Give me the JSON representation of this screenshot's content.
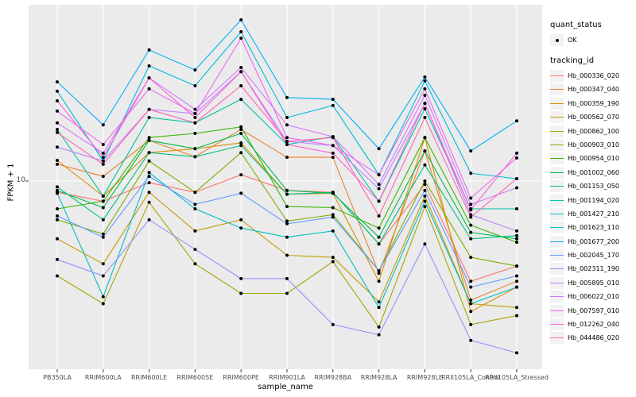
{
  "y_axis": {
    "title": "FPKM + 1",
    "tick_label": "10"
  },
  "x_axis": {
    "title": "sample_name",
    "categories": [
      "PB350LA",
      "RRIM600LA",
      "RRIM600LE",
      "RRIM600SE",
      "RRIM600PE",
      "RRIM901LA",
      "RRIM928BA",
      "RRIM928LA",
      "RRIM928LE",
      "RRII105LA_Control",
      "RRII105LA_Stressed"
    ]
  },
  "legend": {
    "quant_status": {
      "title": "quant_status",
      "items": [
        {
          "label": "OK",
          "symbol": "point"
        }
      ]
    },
    "tracking_id_title": "tracking_id"
  },
  "colors": {
    "panel_bg": "#EBEBEB",
    "gridline": "#FFFFFF",
    "tick": "#333333",
    "axis_text": "#4d4d4d",
    "point": "#000000",
    "legend_key_bg": "#F2F2F2"
  },
  "chart_data": {
    "type": "line",
    "title": "",
    "xlabel": "sample_name",
    "ylabel": "FPKM + 1",
    "y_scale": "log10",
    "ylim": [
      1,
      88
    ],
    "y_tick_values": [
      10
    ],
    "grid": "major",
    "legend_position": "right",
    "marker": "black point (quant_status OK)",
    "categories": [
      "PB350LA",
      "RRIM600LA",
      "RRIM600LE",
      "RRIM600SE",
      "RRIM600PE",
      "RRIM901LA",
      "RRIM928BA",
      "RRIM928LA",
      "RRIM928LE",
      "RRII105LA_Control",
      "RRII105LA_Stressed"
    ],
    "series": [
      {
        "name": "Hb_000336_020",
        "color": "#F8766D",
        "values": [
          8.7,
          7.8,
          9.8,
          8.7,
          10.8,
          8.9,
          8.7,
          4.6,
          9.6,
          2.9,
          3.5
        ]
      },
      {
        "name": "Hb_000347_040",
        "color": "#EA8331",
        "values": [
          12.3,
          10.6,
          16.5,
          13.5,
          18.9,
          13.4,
          13.4,
          3.2,
          14.5,
          2.3,
          2.9
        ]
      },
      {
        "name": "Hb_000359_190",
        "color": "#D89000",
        "values": [
          12.9,
          8.3,
          14.2,
          14.9,
          16.0,
          8.5,
          8.6,
          2.9,
          17.1,
          2.0,
          2.7
        ]
      },
      {
        "name": "Hb_000562_070",
        "color": "#C49A00",
        "values": [
          4.9,
          3.6,
          8.7,
          5.4,
          6.2,
          4.0,
          3.9,
          2.25,
          8.3,
          2.2,
          2.1
        ]
      },
      {
        "name": "Hb_000862_100",
        "color": "#A3A500",
        "values": [
          3.1,
          2.2,
          7.7,
          3.6,
          2.5,
          2.5,
          3.7,
          1.65,
          7.3,
          1.7,
          1.9
        ]
      },
      {
        "name": "Hb_000903_010",
        "color": "#7CAE00",
        "values": [
          6.2,
          5.2,
          12.8,
          8.7,
          14.2,
          6.1,
          6.6,
          3.3,
          10.0,
          3.9,
          3.5
        ]
      },
      {
        "name": "Hb_000954_010",
        "color": "#39B600",
        "values": [
          7.1,
          7.8,
          17.1,
          18.0,
          19.5,
          7.3,
          7.2,
          5.6,
          17.1,
          5.8,
          4.7
        ]
      },
      {
        "name": "Hb_001002_060",
        "color": "#00BB4E",
        "values": [
          8.9,
          7.2,
          16.5,
          14.9,
          18.0,
          8.9,
          8.6,
          5.0,
          14.5,
          5.3,
          4.9
        ]
      },
      {
        "name": "Hb_001153_050",
        "color": "#00BF7D",
        "values": [
          9.3,
          6.2,
          14.2,
          13.5,
          15.5,
          8.5,
          8.7,
          4.6,
          12.2,
          4.9,
          5.1
        ]
      },
      {
        "name": "Hb_001194_020",
        "color": "#00C1A3",
        "values": [
          18.9,
          8.3,
          21.9,
          20.5,
          27.4,
          15.7,
          17.3,
          7.8,
          24.4,
          7.1,
          7.1
        ]
      },
      {
        "name": "Hb_001427_210",
        "color": "#00BFC4",
        "values": [
          8.6,
          2.4,
          11.1,
          7.1,
          5.6,
          5.0,
          5.4,
          2.1,
          7.8,
          2.2,
          2.7
        ]
      },
      {
        "name": "Hb_001623_110",
        "color": "#00BBDA",
        "values": [
          30.3,
          12.8,
          41.4,
          32.4,
          63.1,
          21.9,
          25.4,
          10.8,
          34.4,
          11.0,
          10.3
        ]
      },
      {
        "name": "Hb_001677_200",
        "color": "#00B0F6",
        "values": [
          34.0,
          20.0,
          50.4,
          39.4,
          73.1,
          28.0,
          27.4,
          14.9,
          36.1,
          14.5,
          21.0
        ]
      },
      {
        "name": "Hb_002045_170",
        "color": "#619CFF",
        "values": [
          6.5,
          5.0,
          10.6,
          7.5,
          8.6,
          5.9,
          6.4,
          3.3,
          8.9,
          2.7,
          3.1
        ]
      },
      {
        "name": "Hb_002311_190",
        "color": "#9590FF",
        "values": [
          3.8,
          3.1,
          6.2,
          4.3,
          3.0,
          3.0,
          1.7,
          1.5,
          4.6,
          1.4,
          1.2
        ]
      },
      {
        "name": "Hb_005895_010",
        "color": "#BC81FF",
        "values": [
          15.2,
          12.8,
          24.2,
          23.0,
          38.6,
          16.3,
          15.5,
          9.1,
          26.1,
          6.6,
          5.4
        ]
      },
      {
        "name": "Hb_006022_010",
        "color": "#D575FE",
        "values": [
          20.5,
          14.1,
          35.7,
          24.2,
          40.6,
          20.0,
          17.3,
          9.6,
          28.8,
          7.5,
          9.2
        ]
      },
      {
        "name": "Hb_007597_010",
        "color": "#EC69EF",
        "values": [
          23.7,
          15.7,
          31.2,
          23.0,
          58.3,
          17.1,
          15.5,
          10.8,
          31.2,
          8.1,
          13.3
        ]
      },
      {
        "name": "Hb_012262_040",
        "color": "#FD61D3",
        "values": [
          26.9,
          13.4,
          35.7,
          21.9,
          38.6,
          15.7,
          14.1,
          7.8,
          26.1,
          7.0,
          14.1
        ]
      },
      {
        "name": "Hb_044486_020",
        "color": "#FF64B0",
        "values": [
          18.2,
          12.3,
          24.2,
          20.5,
          32.4,
          16.3,
          17.1,
          6.5,
          21.9,
          6.4,
          10.3
        ]
      }
    ]
  }
}
